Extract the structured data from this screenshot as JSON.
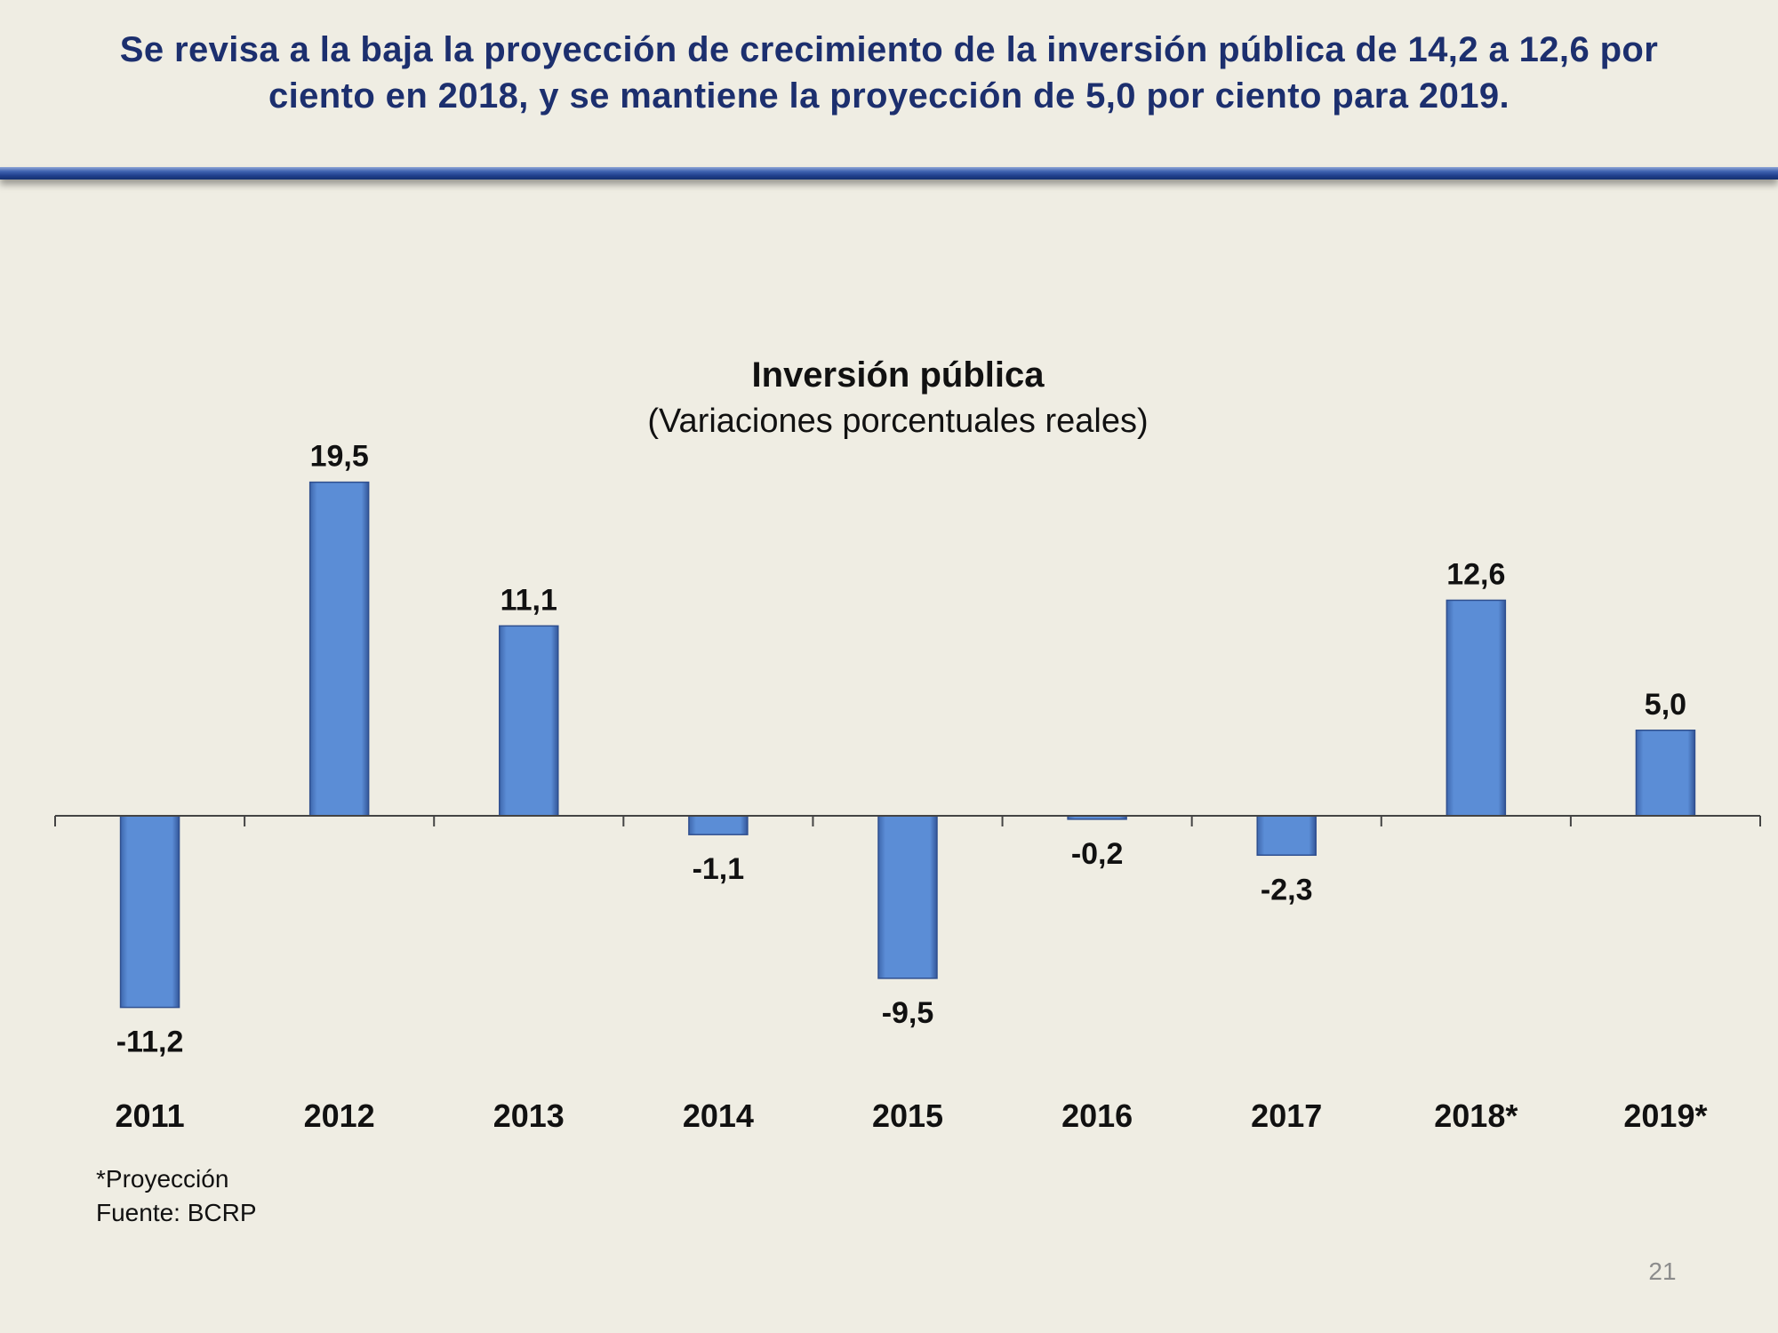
{
  "slide": {
    "headline_line1": "Se revisa a la baja la proyección de crecimiento de la inversión pública de 14,2 a 12,6 por",
    "headline_line2": "ciento en 2018, y se mantiene la proyección de 5,0 por ciento para 2019.",
    "footnote_projection": "*Proyección",
    "footnote_source": "Fuente: BCRP",
    "page_number": "21",
    "accent_color": "#1c2f6e",
    "rule_color": "#2a4a98"
  },
  "chart_data": {
    "type": "bar",
    "title": "Inversión pública",
    "subtitle": "(Variaciones porcentuales reales)",
    "categories": [
      "2011",
      "2012",
      "2013",
      "2014",
      "2015",
      "2016",
      "2017",
      "2018*",
      "2019*"
    ],
    "values": [
      -11.2,
      19.5,
      11.1,
      -1.1,
      -9.5,
      -0.2,
      -2.3,
      12.6,
      5.0
    ],
    "value_labels": [
      "-11,2",
      "19,5",
      "11,1",
      "-1,1",
      "-9,5",
      "-0,2",
      "-2,3",
      "12,6",
      "5,0"
    ],
    "bar_color": "#5b8dd6",
    "grid": false,
    "legend": "none"
  }
}
